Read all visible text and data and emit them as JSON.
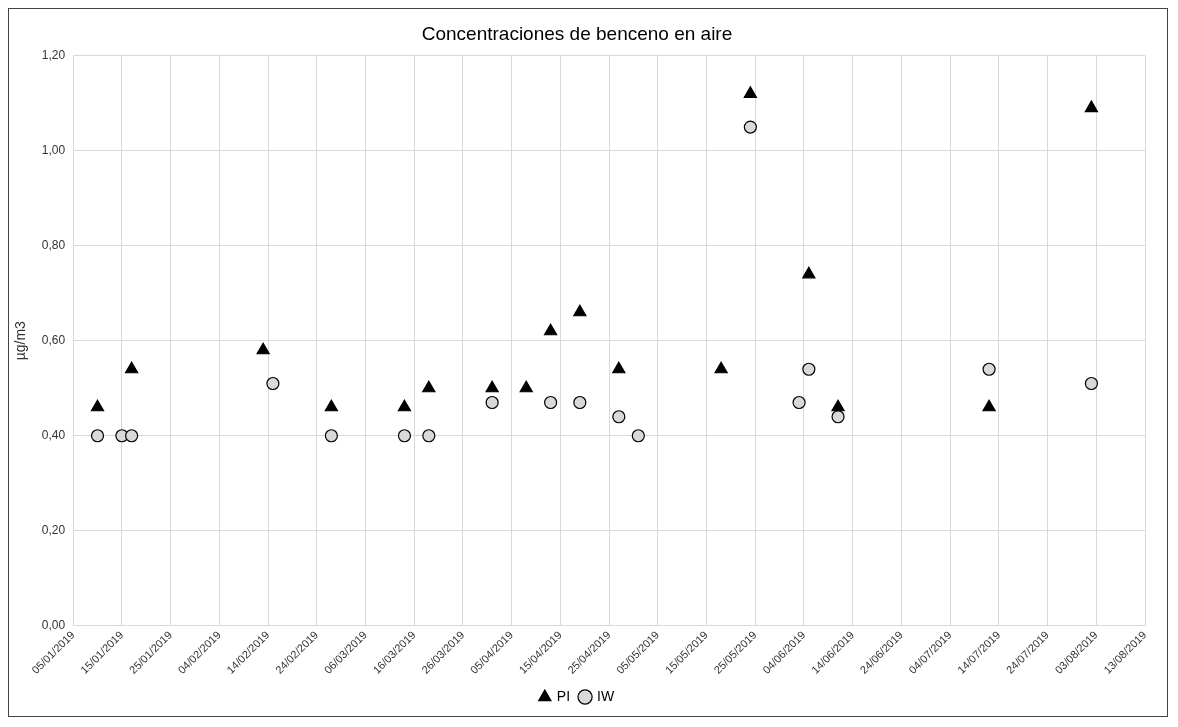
{
  "chart_data": {
    "type": "scatter",
    "title": "Concentraciones de benceno en aire",
    "ylabel": "µg/m3",
    "xlim": [
      "2019-01-05",
      "2019-08-13"
    ],
    "xticks": [
      {
        "value": "2019-01-05",
        "label": "05/01/2019"
      },
      {
        "value": "2019-01-15",
        "label": "15/01/2019"
      },
      {
        "value": "2019-01-25",
        "label": "25/01/2019"
      },
      {
        "value": "2019-02-04",
        "label": "04/02/2019"
      },
      {
        "value": "2019-02-14",
        "label": "14/02/2019"
      },
      {
        "value": "2019-02-24",
        "label": "24/02/2019"
      },
      {
        "value": "2019-03-06",
        "label": "06/03/2019"
      },
      {
        "value": "2019-03-16",
        "label": "16/03/2019"
      },
      {
        "value": "2019-03-26",
        "label": "26/03/2019"
      },
      {
        "value": "2019-04-05",
        "label": "05/04/2019"
      },
      {
        "value": "2019-04-15",
        "label": "15/04/2019"
      },
      {
        "value": "2019-04-25",
        "label": "25/04/2019"
      },
      {
        "value": "2019-05-05",
        "label": "05/05/2019"
      },
      {
        "value": "2019-05-15",
        "label": "15/05/2019"
      },
      {
        "value": "2019-05-25",
        "label": "25/05/2019"
      },
      {
        "value": "2019-06-04",
        "label": "04/06/2019"
      },
      {
        "value": "2019-06-14",
        "label": "14/06/2019"
      },
      {
        "value": "2019-06-24",
        "label": "24/06/2019"
      },
      {
        "value": "2019-07-04",
        "label": "04/07/2019"
      },
      {
        "value": "2019-07-14",
        "label": "14/07/2019"
      },
      {
        "value": "2019-07-24",
        "label": "24/07/2019"
      },
      {
        "value": "2019-08-03",
        "label": "03/08/2019"
      },
      {
        "value": "2019-08-13",
        "label": "13/08/2019"
      }
    ],
    "ylim": [
      0,
      1.2
    ],
    "yticks": [
      {
        "value": 0,
        "label": "0,00"
      },
      {
        "value": 0.2,
        "label": "0,20"
      },
      {
        "value": 0.4,
        "label": "0,40"
      },
      {
        "value": 0.6,
        "label": "0,60"
      },
      {
        "value": 0.8,
        "label": "0,80"
      },
      {
        "value": 1.0,
        "label": "1,00"
      },
      {
        "value": 1.2,
        "label": "1,20"
      }
    ],
    "grid": true,
    "legend": "bottom",
    "series": [
      {
        "name": "PI",
        "color": "#000000",
        "marker": "triangle",
        "x": [
          "2019-01-10",
          "2019-01-17",
          "2019-02-13",
          "2019-02-27",
          "2019-03-14",
          "2019-03-19",
          "2019-04-01",
          "2019-04-08",
          "2019-04-13",
          "2019-04-19",
          "2019-04-27",
          "2019-05-18",
          "2019-05-24",
          "2019-06-05",
          "2019-06-11",
          "2019-07-12",
          "2019-08-02"
        ],
        "values": [
          0.46,
          0.54,
          0.58,
          0.46,
          0.46,
          0.5,
          0.5,
          0.5,
          0.62,
          0.66,
          0.54,
          0.54,
          1.12,
          0.74,
          0.46,
          0.46,
          1.09
        ]
      },
      {
        "name": "IW",
        "color": "#d9d9d9",
        "marker": "circle",
        "x": [
          "2019-01-10",
          "2019-01-15",
          "2019-01-17",
          "2019-02-15",
          "2019-02-27",
          "2019-03-14",
          "2019-03-19",
          "2019-04-01",
          "2019-04-13",
          "2019-04-19",
          "2019-04-27",
          "2019-05-01",
          "2019-05-24",
          "2019-06-03",
          "2019-06-05",
          "2019-06-11",
          "2019-07-12",
          "2019-08-02"
        ],
        "values": [
          0.4,
          0.4,
          0.4,
          0.51,
          0.4,
          0.4,
          0.4,
          0.47,
          0.47,
          0.47,
          0.44,
          0.4,
          1.05,
          0.47,
          0.54,
          0.44,
          0.54,
          0.51
        ]
      }
    ]
  }
}
